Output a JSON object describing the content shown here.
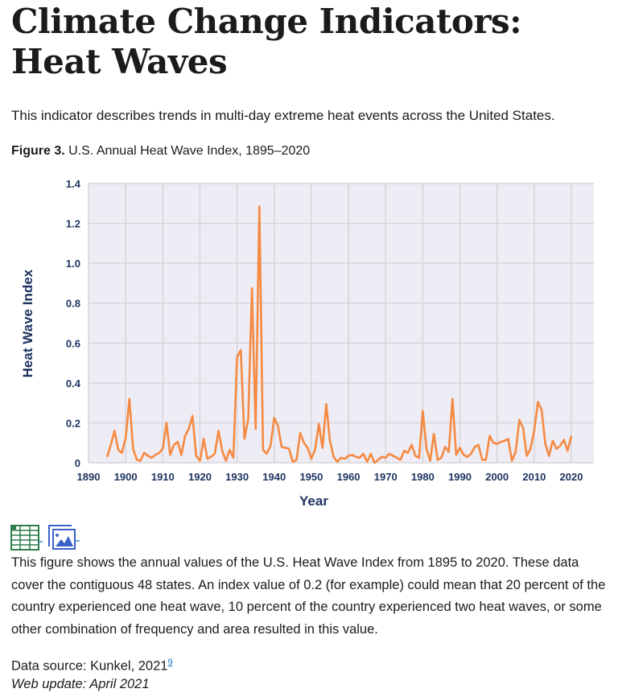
{
  "page": {
    "title": "Climate Change Indicators: Heat Waves",
    "intro": "This indicator describes trends in multi-day extreme heat events across the United States.",
    "figure_label": "Figure 3.",
    "figure_title": "U.S. Annual Heat Wave Index, 1895–2020",
    "icons": [
      "spreadsheet-icon",
      "image-icon"
    ],
    "description": "This figure shows the annual values of the U.S. Heat Wave Index from 1895 to 2020. These data cover the contiguous 48 states. An index value of 0.2 (for example) could mean that 20 percent of the country experienced one heat wave, 10 percent of the country experienced two heat waves, or some other combination of frequency and area resulted in this value.",
    "source_label": "Data source: Kunkel, 2021",
    "source_ref": "9",
    "web_update": "Web update: April 2021"
  },
  "chart_data": {
    "type": "line",
    "title": "",
    "xlabel": "Year",
    "ylabel": "Heat Wave Index",
    "xlim": [
      1890,
      2020
    ],
    "ylim": [
      0,
      1.4
    ],
    "x_ticks": [
      "1890",
      "1900",
      "1910",
      "1920",
      "1930",
      "1940",
      "1950",
      "1960",
      "1970",
      "1980",
      "1990",
      "2000",
      "2010",
      "2020"
    ],
    "y_ticks": [
      "0",
      "0.2",
      "0.4",
      "0.6",
      "0.8",
      "1.0",
      "1.2",
      "1.4"
    ],
    "grid": true,
    "line_color": "#f58a42",
    "x_start": 1895,
    "values": [
      0.03,
      0.09,
      0.16,
      0.065,
      0.05,
      0.125,
      0.32,
      0.07,
      0.015,
      0.01,
      0.05,
      0.035,
      0.025,
      0.04,
      0.05,
      0.07,
      0.2,
      0.04,
      0.09,
      0.105,
      0.04,
      0.135,
      0.17,
      0.235,
      0.035,
      0.01,
      0.12,
      0.02,
      0.03,
      0.045,
      0.16,
      0.06,
      0.01,
      0.065,
      0.025,
      0.53,
      0.565,
      0.12,
      0.22,
      0.875,
      0.17,
      1.285,
      0.065,
      0.045,
      0.085,
      0.225,
      0.185,
      0.08,
      0.075,
      0.07,
      0.005,
      0.015,
      0.15,
      0.1,
      0.075,
      0.02,
      0.065,
      0.195,
      0.075,
      0.295,
      0.11,
      0.03,
      0.005,
      0.025,
      0.02,
      0.035,
      0.04,
      0.03,
      0.025,
      0.045,
      0.005,
      0.045,
      0.0,
      0.015,
      0.03,
      0.025,
      0.045,
      0.035,
      0.025,
      0.015,
      0.06,
      0.05,
      0.09,
      0.035,
      0.025,
      0.26,
      0.07,
      0.01,
      0.145,
      0.015,
      0.025,
      0.08,
      0.055,
      0.32,
      0.04,
      0.075,
      0.04,
      0.03,
      0.045,
      0.08,
      0.09,
      0.015,
      0.015,
      0.135,
      0.1,
      0.095,
      0.105,
      0.11,
      0.12,
      0.01,
      0.055,
      0.215,
      0.175,
      0.035,
      0.07,
      0.16,
      0.305,
      0.265,
      0.095,
      0.035,
      0.11,
      0.07,
      0.085,
      0.115,
      0.06,
      0.135
    ]
  }
}
